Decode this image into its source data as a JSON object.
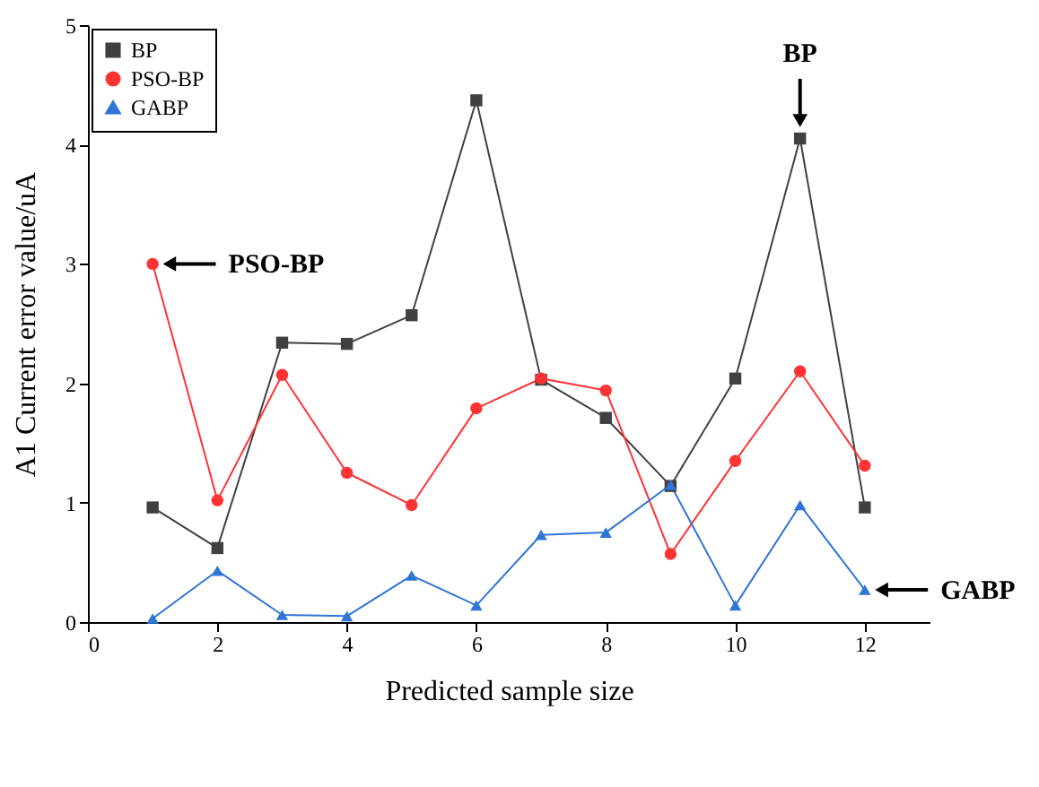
{
  "chart_data": {
    "type": "line",
    "xlabel": "Predicted sample size",
    "ylabel": "A1 Current error value/uA",
    "x": [
      1,
      2,
      3,
      4,
      5,
      6,
      7,
      8,
      9,
      10,
      11,
      12
    ],
    "series": [
      {
        "name": "BP",
        "color": "#404040",
        "marker": "square",
        "values": [
          0.96,
          0.62,
          2.34,
          2.33,
          2.57,
          4.37,
          2.03,
          1.71,
          1.14,
          2.04,
          4.05,
          0.96
        ]
      },
      {
        "name": "PSO-BP",
        "color": "#ff3333",
        "marker": "circle",
        "values": [
          3.0,
          1.02,
          2.07,
          1.25,
          0.98,
          1.79,
          2.04,
          1.94,
          0.57,
          1.35,
          2.1,
          1.31
        ]
      },
      {
        "name": "GABP",
        "color": "#2e75d6",
        "marker": "triangle",
        "values": [
          0.03,
          0.43,
          0.06,
          0.05,
          0.39,
          0.14,
          0.73,
          0.75,
          1.15,
          0.14,
          0.98,
          0.27
        ]
      }
    ],
    "xlim": [
      0,
      13
    ],
    "xticks": [
      0,
      2,
      4,
      6,
      8,
      10,
      12
    ],
    "ylim": [
      0,
      5
    ],
    "yticks": [
      0,
      1,
      2,
      3,
      4,
      5
    ],
    "legend": "top left",
    "grid": false,
    "annotations": [
      {
        "text": "PSO-BP",
        "x": 1,
        "y": 3.0
      },
      {
        "text": "BP",
        "x": 11,
        "y": 4.05
      },
      {
        "text": "GABP",
        "x": 12,
        "y": 0.27
      }
    ]
  }
}
